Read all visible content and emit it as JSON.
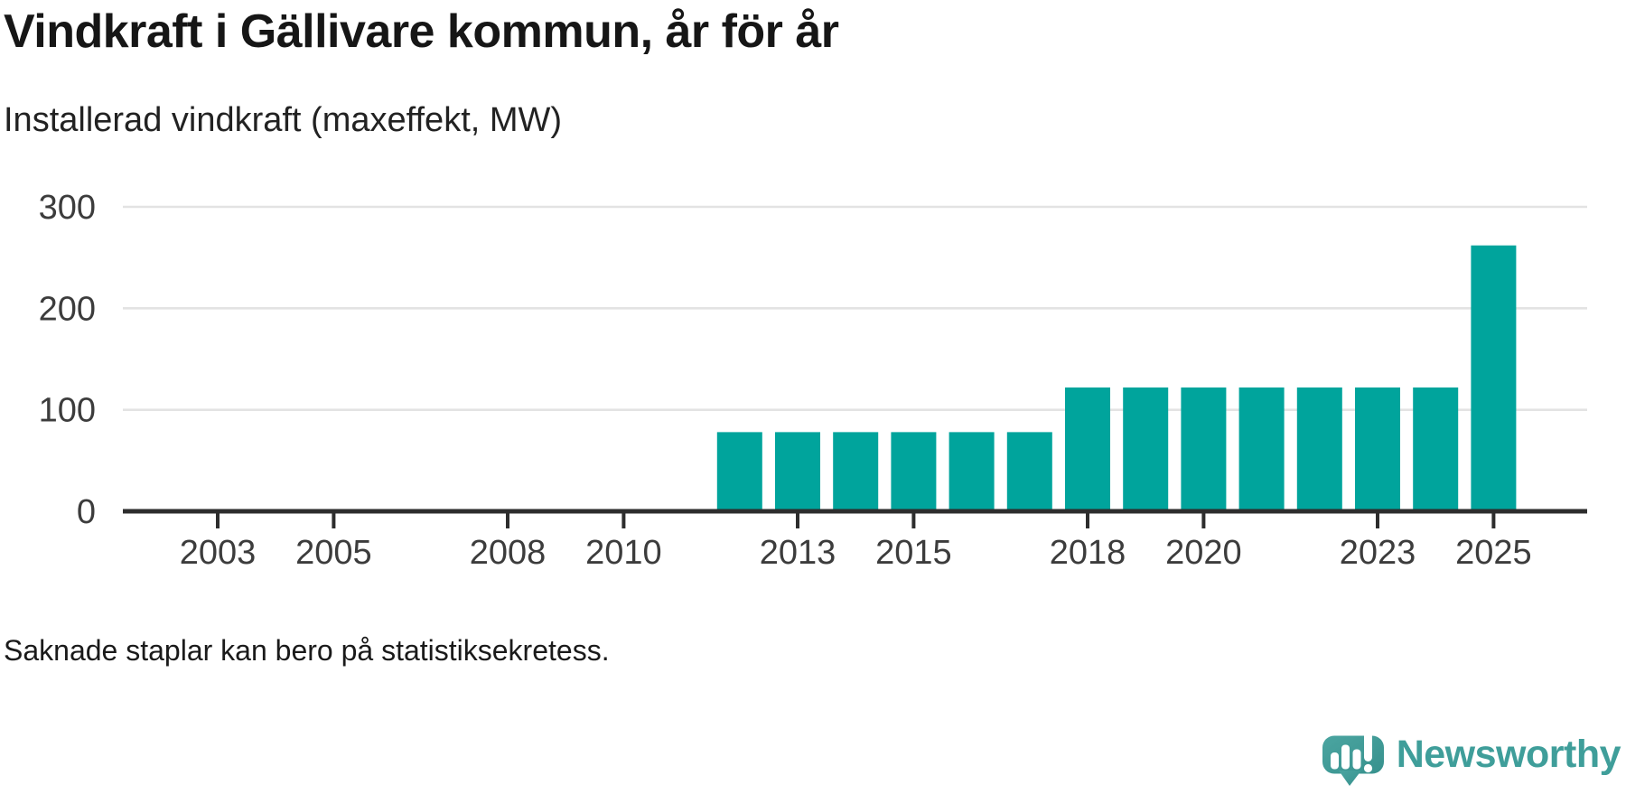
{
  "header": {
    "title": "Vindkraft i Gällivare kommun, år för år",
    "subtitle": "Installerad vindkraft (maxeffekt, MW)"
  },
  "chart_data": {
    "type": "bar",
    "title": "Vindkraft i Gällivare kommun, år för år",
    "subtitle": "Installerad vindkraft (maxeffekt, MW)",
    "unit": "MW",
    "categories": [
      "2012",
      "2013",
      "2014",
      "2015",
      "2016",
      "2017",
      "2018",
      "2019",
      "2020",
      "2021",
      "2022",
      "2023",
      "2024",
      "2025"
    ],
    "values": [
      78,
      78,
      78,
      78,
      78,
      78,
      122,
      122,
      122,
      122,
      122,
      122,
      122,
      262
    ],
    "missing_years_note": "No bars shown for 2002-2011",
    "ylim": [
      0,
      300
    ],
    "y_ticks": [
      0,
      100,
      200,
      300
    ],
    "x_domain": [
      2002,
      2026
    ],
    "x_tick_labels": [
      "2003",
      "2005",
      "2008",
      "2010",
      "2013",
      "2015",
      "2018",
      "2020",
      "2023",
      "2025"
    ],
    "grid": "horizontal",
    "legend": "none"
  },
  "footnote": "Saknade staplar kan bero på statistiksekretess.",
  "branding": {
    "label": "Newsworthy"
  },
  "colors": {
    "bar": "#00a49c",
    "axis": "#2d2d2d",
    "grid": "#e3e3e3",
    "tick_label": "#3c3c3c",
    "title_text": "#161616",
    "brand_teal": "#3f9e9a",
    "brand_bubble": "#4ba5a1",
    "brand_bubble_dark": "#37918d"
  }
}
